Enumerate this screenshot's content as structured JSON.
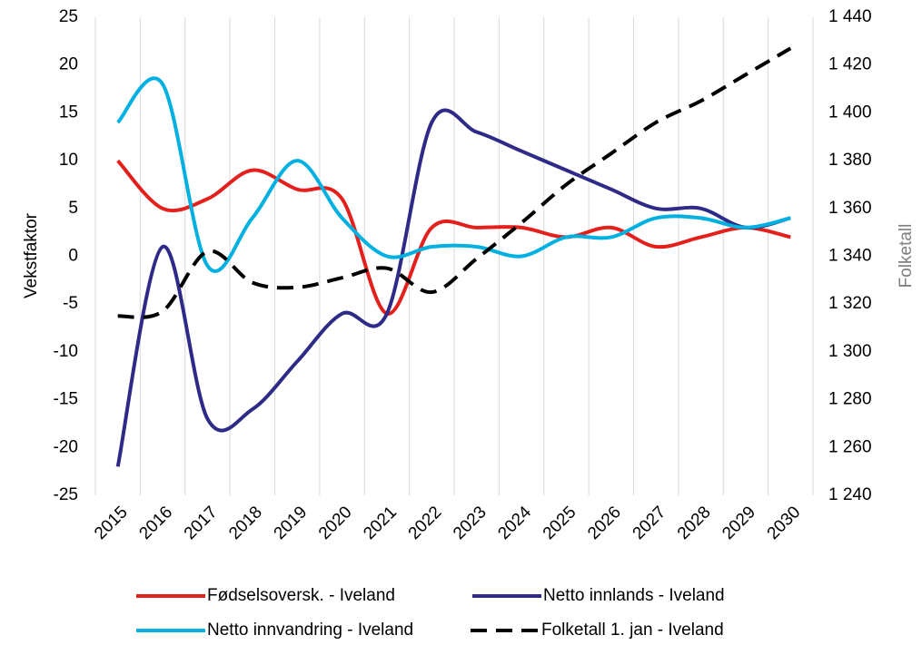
{
  "chart_data": {
    "type": "line",
    "categories": [
      "2015",
      "2016",
      "2017",
      "2018",
      "2019",
      "2020",
      "2021",
      "2022",
      "2023",
      "2024",
      "2025",
      "2026",
      "2027",
      "2028",
      "2029",
      "2030"
    ],
    "ylabel": "Vekstfaktor",
    "y2label": "Folketall",
    "ylim": [
      -25,
      25
    ],
    "yticks": [
      -25,
      -20,
      -15,
      -10,
      -5,
      0,
      5,
      10,
      15,
      20,
      25
    ],
    "y2lim": [
      1240,
      1440
    ],
    "y2ticks": [
      {
        "value": 1240,
        "label": "1 240"
      },
      {
        "value": 1260,
        "label": "1 260"
      },
      {
        "value": 1280,
        "label": "1 280"
      },
      {
        "value": 1300,
        "label": "1 300"
      },
      {
        "value": 1320,
        "label": "1 320"
      },
      {
        "value": 1340,
        "label": "1 340"
      },
      {
        "value": 1360,
        "label": "1 360"
      },
      {
        "value": 1380,
        "label": "1 380"
      },
      {
        "value": 1400,
        "label": "1 400"
      },
      {
        "value": 1420,
        "label": "1 420"
      },
      {
        "value": 1440,
        "label": "1 440"
      }
    ],
    "grid": true,
    "series": [
      {
        "name": "Fødselsoversk. - Iveland",
        "color": "#e3201b",
        "values": [
          10,
          5,
          6,
          9,
          7,
          6,
          -6,
          3,
          3,
          3,
          2,
          3,
          1,
          2,
          3,
          2
        ]
      },
      {
        "name": "Netto innlands - Iveland",
        "color": "#2e2a87",
        "values": [
          -22,
          1,
          -17,
          -16,
          -11,
          -6,
          -6,
          14,
          13,
          11,
          9,
          7,
          5,
          5,
          3,
          4
        ]
      },
      {
        "name": "Netto innvandring - Iveland",
        "color": "#00b0e0",
        "values": [
          14,
          18,
          -1,
          4,
          10,
          4,
          0,
          1,
          1,
          0,
          2,
          2,
          4,
          4,
          3,
          4
        ]
      },
      {
        "name": "Folketall 1. jan - Iveland",
        "color": "#000000",
        "dashed": true,
        "axis": "y2",
        "values": [
          1315,
          1317,
          1342,
          1329,
          1327,
          1331,
          1335,
          1325,
          1339,
          1354,
          1370,
          1383,
          1396,
          1405,
          1416,
          1427
        ]
      }
    ]
  }
}
